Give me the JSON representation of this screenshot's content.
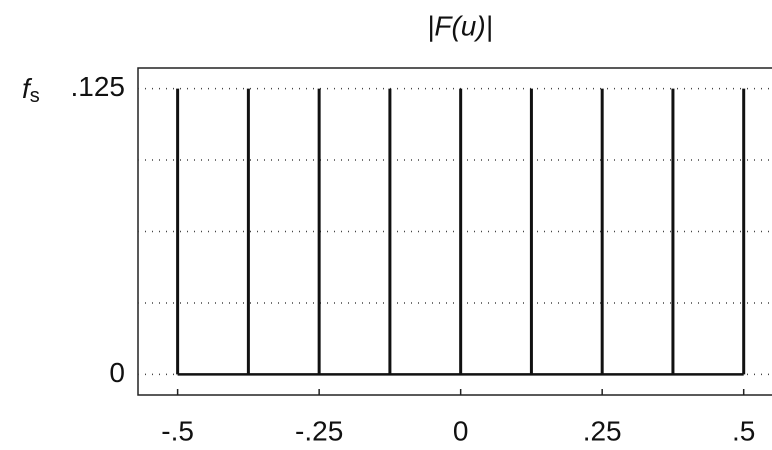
{
  "chart_data": {
    "type": "stem",
    "title": "|F(u)|",
    "y_label": {
      "symbol": "f",
      "subscript": "s"
    },
    "x": [
      -0.5,
      -0.375,
      -0.25,
      -0.125,
      0,
      0.125,
      0.25,
      0.375,
      0.5
    ],
    "values": [
      0.125,
      0.125,
      0.125,
      0.125,
      0.125,
      0.125,
      0.125,
      0.125,
      0.125
    ],
    "color": "#111111",
    "xlim": [
      -0.57,
      0.55
    ],
    "ylim": [
      -0.009,
      0.134
    ],
    "xticks": [
      {
        "value": -0.5,
        "label": "-.5"
      },
      {
        "value": -0.25,
        "label": "-.25"
      },
      0,
      {
        "value": 0.25,
        "label": ".25"
      },
      {
        "value": 0.5,
        "label": ".5"
      }
    ],
    "yticks": [
      0,
      {
        "value": 0.125,
        "label": ".125"
      }
    ],
    "minor_yticks": [
      0.03125,
      0.0625,
      0.09375
    ],
    "grid": true
  }
}
